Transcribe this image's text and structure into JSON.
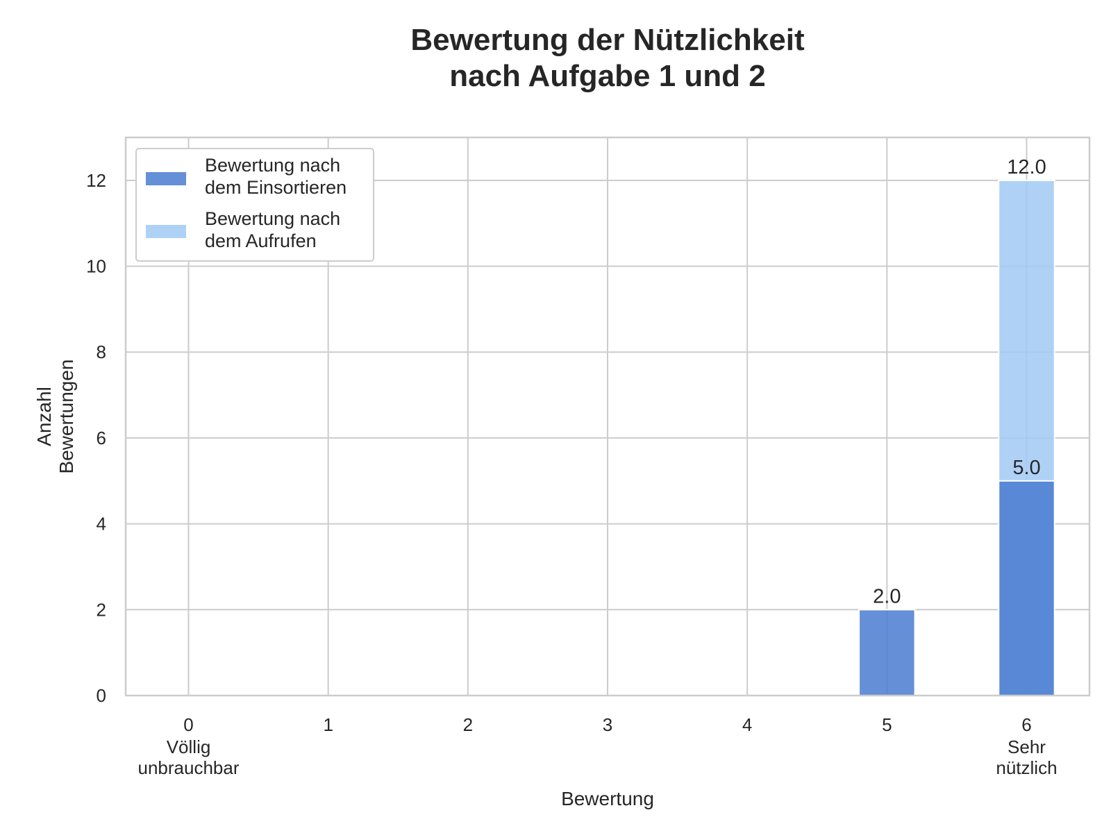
{
  "chart_data": {
    "type": "bar",
    "title": [
      "Bewertung der Nützlichkeit",
      "nach Aufgabe 1 und 2"
    ],
    "xlabel": "Bewertung",
    "ylabel": [
      "Anzahl",
      "Bewertungen"
    ],
    "categories": [
      "0",
      "1",
      "2",
      "3",
      "4",
      "5",
      "6"
    ],
    "category_sublabels": [
      [
        "Völlig",
        "unbrauchbar"
      ],
      [],
      [],
      [],
      [],
      [],
      [
        "Sehr",
        "nützlich"
      ]
    ],
    "series": [
      {
        "name": [
          "Bewertung nach",
          "dem Einsortieren"
        ],
        "color": "#4a7bd0",
        "values": [
          0,
          0,
          0,
          0,
          0,
          2,
          5
        ],
        "labels": [
          "",
          "",
          "",
          "",
          "",
          "2.0",
          "5.0"
        ]
      },
      {
        "name": [
          "Bewertung nach",
          "dem Aufrufen"
        ],
        "color": "#a1c9f4",
        "values": [
          0,
          0,
          0,
          0,
          0,
          0,
          12
        ],
        "labels": [
          "",
          "",
          "",
          "",
          "",
          "",
          "12.0"
        ]
      }
    ],
    "ylim": [
      0,
      13
    ],
    "yticks": [
      0,
      2,
      4,
      6,
      8,
      10,
      12
    ],
    "grid": true,
    "legend_position": "top-left"
  }
}
